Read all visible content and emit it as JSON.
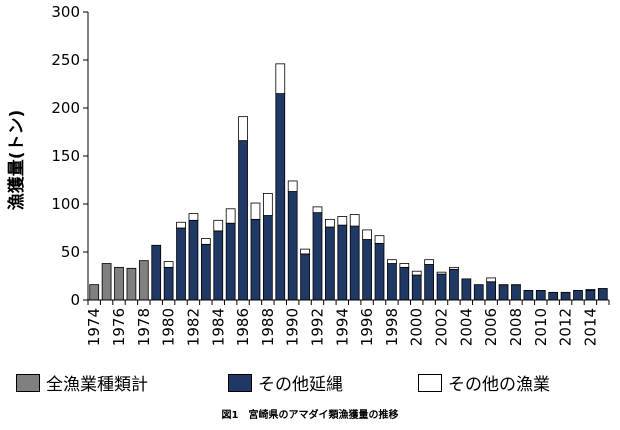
{
  "chart_data": {
    "type": "bar",
    "stacked": true,
    "ylabel": "漁獲量(トン)",
    "ylim": [
      0,
      300
    ],
    "yticks": [
      0,
      50,
      100,
      150,
      200,
      250,
      300
    ],
    "categories": [
      "1974",
      "1975",
      "1976",
      "1977",
      "1978",
      "1979",
      "1980",
      "1981",
      "1982",
      "1983",
      "1984",
      "1985",
      "1986",
      "1987",
      "1988",
      "1989",
      "1990",
      "1991",
      "1992",
      "1993",
      "1994",
      "1995",
      "1996",
      "1997",
      "1998",
      "1999",
      "2000",
      "2001",
      "2002",
      "2003",
      "2004",
      "2005",
      "2006",
      "2007",
      "2008",
      "2009",
      "2010",
      "2011",
      "2012",
      "2013",
      "2014",
      "2015"
    ],
    "xtick_labels": [
      "1974",
      "1976",
      "1978",
      "1980",
      "1982",
      "1984",
      "1986",
      "1988",
      "1990",
      "1992",
      "1994",
      "1996",
      "1998",
      "2000",
      "2002",
      "2004",
      "2006",
      "2008",
      "2010",
      "2012",
      "2014"
    ],
    "grid": false,
    "legend_position": "bottom",
    "series": [
      {
        "name": "全漁業種類計",
        "color": "#808080",
        "values": [
          16,
          38,
          34,
          33,
          41,
          0,
          0,
          0,
          0,
          0,
          0,
          0,
          0,
          0,
          0,
          0,
          0,
          0,
          0,
          0,
          0,
          0,
          0,
          0,
          0,
          0,
          0,
          0,
          0,
          0,
          0,
          0,
          0,
          0,
          0,
          0,
          0,
          0,
          0,
          0,
          0,
          0
        ]
      },
      {
        "name": "その他延縄",
        "color": "#1f3864",
        "values": [
          0,
          0,
          0,
          0,
          0,
          57,
          34,
          75,
          83,
          58,
          72,
          80,
          166,
          84,
          88,
          215,
          113,
          48,
          91,
          76,
          78,
          77,
          63,
          59,
          38,
          34,
          26,
          37,
          27,
          32,
          22,
          16,
          19,
          15,
          15,
          10,
          10,
          8,
          8,
          10,
          10,
          12
        ]
      },
      {
        "name": "その他の漁業",
        "color": "#ffffff",
        "values": [
          0,
          0,
          0,
          0,
          0,
          0,
          6,
          6,
          7,
          6,
          11,
          15,
          25,
          17,
          23,
          31,
          11,
          5,
          6,
          8,
          9,
          12,
          10,
          8,
          4,
          4,
          4,
          5,
          2,
          2,
          0,
          0,
          4,
          1,
          1,
          0,
          0,
          0,
          0,
          0,
          1,
          0
        ]
      }
    ]
  },
  "caption": "図1　宮崎県のアマダイ類漁獲量の推移"
}
